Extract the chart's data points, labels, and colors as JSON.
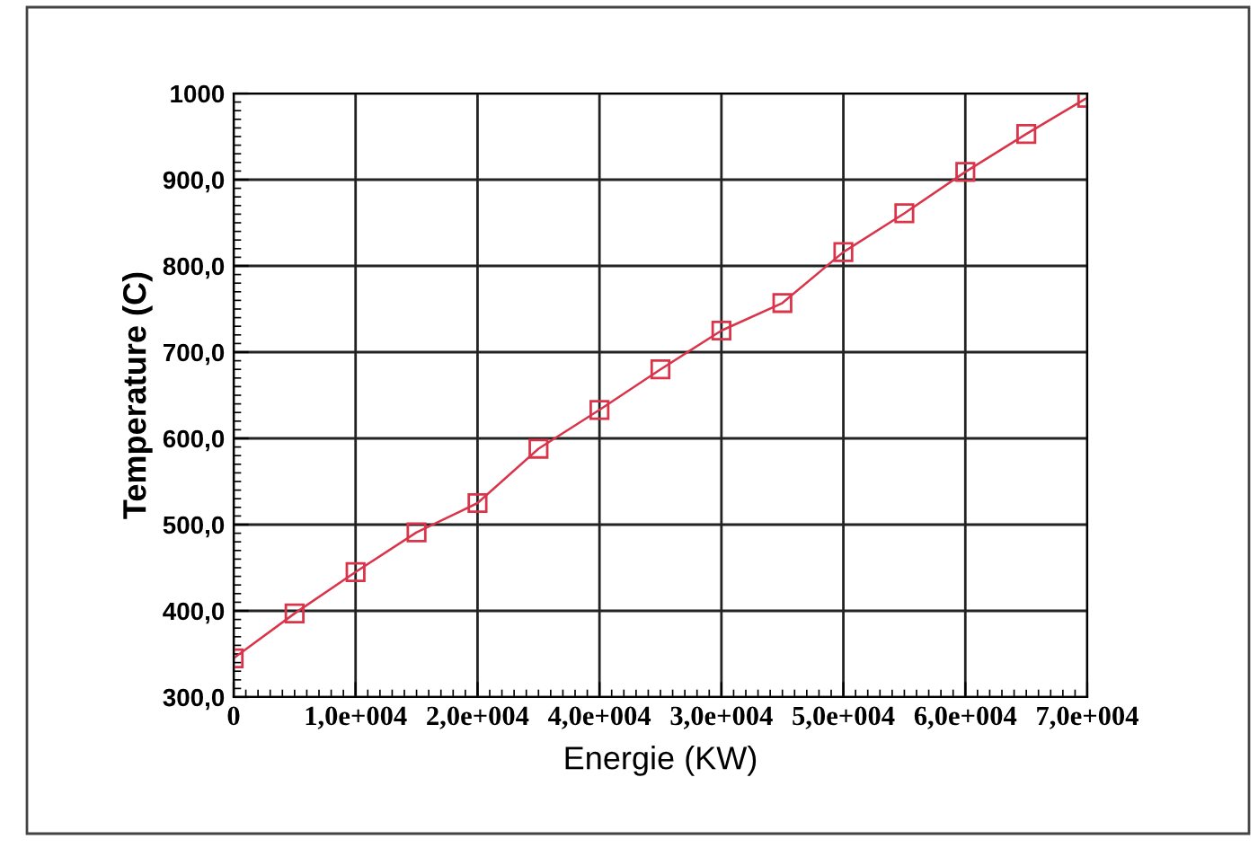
{
  "chart_data": {
    "type": "line",
    "xlabel": "Energie (KW)",
    "ylabel": "Temperature (C)",
    "categories": [
      "0",
      null,
      "1,0e+004",
      null,
      "2,0e+004",
      null,
      "4,0e+004",
      null,
      "3,0e+004",
      null,
      "5,0e+004",
      null,
      "6,0e+004",
      null,
      "7,0e+004"
    ],
    "series": [
      {
        "color": "#d9344a",
        "values": [
          345,
          397,
          445,
          491,
          525,
          588,
          633,
          680,
          725,
          757,
          816,
          861,
          909,
          953,
          995
        ]
      }
    ],
    "marker": "square",
    "line_style": "solid",
    "grid": true,
    "ylim": [
      300,
      1000
    ],
    "yticks": [
      {
        "value": 300,
        "label": "300,0"
      },
      {
        "value": 400,
        "label": "400,0"
      },
      {
        "value": 500,
        "label": "500,0"
      },
      {
        "value": 600,
        "label": "600,0"
      },
      {
        "value": 700,
        "label": "700,0"
      },
      {
        "value": 800,
        "label": "800,0"
      },
      {
        "value": 900,
        "label": "900,0"
      },
      1000
    ]
  }
}
